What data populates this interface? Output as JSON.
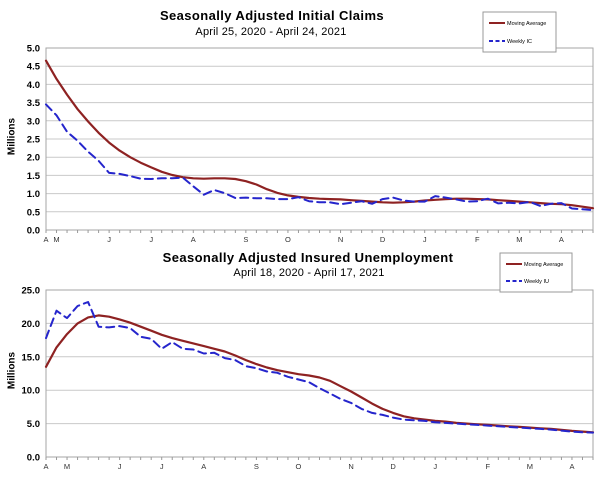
{
  "chart_data": [
    {
      "type": "line",
      "title": "Seasonally Adjusted Initial Claims",
      "subtitle": "April 25, 2020 - April 24, 2021",
      "ylabel": "Millions",
      "ylim": [
        0.0,
        5.0
      ],
      "ytick_step": 0.5,
      "grid": "horizontal",
      "legend_position": "top-right",
      "x_months": [
        {
          "label": "A",
          "week": 0
        },
        {
          "label": "M",
          "week": 1
        },
        {
          "label": "J",
          "week": 6
        },
        {
          "label": "J",
          "week": 10
        },
        {
          "label": "A",
          "week": 14
        },
        {
          "label": "S",
          "week": 19
        },
        {
          "label": "O",
          "week": 23
        },
        {
          "label": "N",
          "week": 28
        },
        {
          "label": "D",
          "week": 32
        },
        {
          "label": "J",
          "week": 36
        },
        {
          "label": "F",
          "week": 41
        },
        {
          "label": "M",
          "week": 45
        },
        {
          "label": "A",
          "week": 49
        }
      ],
      "series": [
        {
          "name": "Moving Average",
          "color": "#8e2222",
          "style": "solid",
          "values": [
            4.65,
            4.15,
            3.72,
            3.32,
            2.98,
            2.67,
            2.4,
            2.18,
            2.0,
            1.85,
            1.72,
            1.6,
            1.51,
            1.45,
            1.42,
            1.41,
            1.42,
            1.42,
            1.4,
            1.34,
            1.25,
            1.12,
            1.02,
            0.95,
            0.91,
            0.88,
            0.86,
            0.85,
            0.84,
            0.82,
            0.8,
            0.78,
            0.76,
            0.75,
            0.76,
            0.78,
            0.81,
            0.83,
            0.85,
            0.86,
            0.86,
            0.85,
            0.84,
            0.82,
            0.8,
            0.78,
            0.76,
            0.74,
            0.72,
            0.71,
            0.68,
            0.64,
            0.6
          ]
        },
        {
          "name": "Weekly IC",
          "color": "#2525cc",
          "style": "dashed",
          "values": [
            3.45,
            3.15,
            2.7,
            2.45,
            2.15,
            1.9,
            1.57,
            1.54,
            1.48,
            1.41,
            1.4,
            1.42,
            1.42,
            1.44,
            1.2,
            0.97,
            1.1,
            1.01,
            0.88,
            0.89,
            0.87,
            0.87,
            0.85,
            0.85,
            0.9,
            0.79,
            0.76,
            0.76,
            0.71,
            0.75,
            0.79,
            0.72,
            0.85,
            0.89,
            0.81,
            0.78,
            0.78,
            0.93,
            0.89,
            0.84,
            0.78,
            0.79,
            0.86,
            0.73,
            0.75,
            0.73,
            0.77,
            0.66,
            0.72,
            0.74,
            0.59,
            0.57,
            0.55
          ]
        }
      ]
    },
    {
      "type": "line",
      "title": "Seasonally Adjusted Insured Unemployment",
      "subtitle": "April 18, 2020 - April 17, 2021",
      "ylabel": "Millions",
      "ylim": [
        0.0,
        25.0
      ],
      "ytick_step": 5.0,
      "grid": "horizontal",
      "legend_position": "top-right",
      "x_months": [
        {
          "label": "A",
          "week": 0
        },
        {
          "label": "M",
          "week": 2
        },
        {
          "label": "J",
          "week": 7
        },
        {
          "label": "J",
          "week": 11
        },
        {
          "label": "A",
          "week": 15
        },
        {
          "label": "S",
          "week": 20
        },
        {
          "label": "O",
          "week": 24
        },
        {
          "label": "N",
          "week": 29
        },
        {
          "label": "D",
          "week": 33
        },
        {
          "label": "J",
          "week": 37
        },
        {
          "label": "F",
          "week": 42
        },
        {
          "label": "M",
          "week": 46
        },
        {
          "label": "A",
          "week": 50
        }
      ],
      "series": [
        {
          "name": "Moving Average",
          "color": "#8e2222",
          "style": "solid",
          "values": [
            13.5,
            16.4,
            18.4,
            20.0,
            20.9,
            21.2,
            21.0,
            20.6,
            20.1,
            19.5,
            18.9,
            18.3,
            17.8,
            17.4,
            17.0,
            16.6,
            16.2,
            15.8,
            15.2,
            14.5,
            13.9,
            13.4,
            13.0,
            12.7,
            12.4,
            12.2,
            11.9,
            11.4,
            10.6,
            9.8,
            8.9,
            8.0,
            7.2,
            6.6,
            6.1,
            5.8,
            5.6,
            5.4,
            5.3,
            5.1,
            5.0,
            4.9,
            4.8,
            4.7,
            4.6,
            4.5,
            4.4,
            4.3,
            4.2,
            4.05,
            3.9,
            3.8,
            3.7
          ]
        },
        {
          "name": "Weekly IU",
          "color": "#2525cc",
          "style": "dashed",
          "values": [
            17.8,
            21.9,
            20.8,
            22.6,
            23.2,
            19.5,
            19.4,
            19.6,
            19.3,
            18.0,
            17.7,
            16.2,
            17.2,
            16.2,
            16.1,
            15.5,
            15.6,
            14.8,
            14.5,
            13.6,
            13.3,
            12.8,
            12.6,
            12.0,
            11.6,
            11.2,
            10.3,
            9.5,
            8.7,
            8.1,
            7.2,
            6.6,
            6.3,
            5.9,
            5.6,
            5.5,
            5.4,
            5.2,
            5.1,
            5.0,
            4.9,
            4.8,
            4.7,
            4.6,
            4.5,
            4.4,
            4.3,
            4.2,
            4.1,
            3.95,
            3.8,
            3.7,
            3.65
          ]
        }
      ]
    }
  ],
  "colors": {
    "moving_average": "#8e2222",
    "weekly": "#2525cc",
    "gridline": "#c9c9c9",
    "plot_border": "#a6a6a6"
  }
}
